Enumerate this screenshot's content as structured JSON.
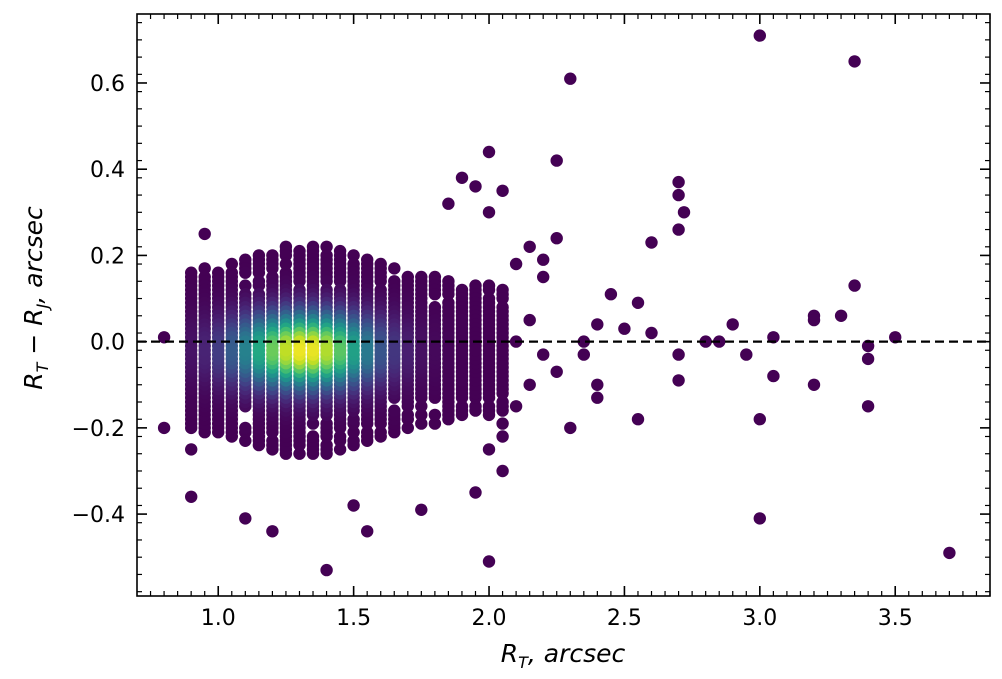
{
  "chart_data": {
    "type": "scatter",
    "xlabel": "R_T, arcsec",
    "ylabel": "R_T − R_J, arcsec",
    "xlim": [
      0.7,
      3.85
    ],
    "ylim": [
      -0.59,
      0.76
    ],
    "x_ticks": [
      1.0,
      1.5,
      2.0,
      2.5,
      3.0,
      3.5
    ],
    "x_tick_labels": [
      "1.0",
      "1.5",
      "2.0",
      "2.5",
      "3.0",
      "3.5"
    ],
    "y_ticks": [
      -0.4,
      -0.2,
      0.0,
      0.2,
      0.4,
      0.6
    ],
    "y_tick_labels": [
      "−0.4",
      "−0.2",
      "0.0",
      "0.2",
      "0.4",
      "0.6"
    ],
    "reference_line": {
      "y": 0.0,
      "style": "dashed",
      "color": "#000000"
    },
    "color_map": "viridis (by point density)",
    "grid": false,
    "dense_core": {
      "x_min": 0.9,
      "x_max": 2.05,
      "x_step": 0.05,
      "y_step": 0.01,
      "peak_x": 1.32,
      "peak_y": -0.02
    },
    "outliers": [
      [
        0.8,
        0.01
      ],
      [
        0.8,
        -0.2
      ],
      [
        0.9,
        -0.25
      ],
      [
        0.9,
        -0.36
      ],
      [
        0.95,
        0.25
      ],
      [
        1.1,
        -0.41
      ],
      [
        1.2,
        -0.44
      ],
      [
        1.4,
        -0.53
      ],
      [
        1.55,
        -0.44
      ],
      [
        1.5,
        -0.38
      ],
      [
        1.75,
        -0.39
      ],
      [
        1.85,
        0.32
      ],
      [
        1.9,
        0.38
      ],
      [
        1.95,
        0.36
      ],
      [
        2.0,
        0.44
      ],
      [
        2.0,
        0.3
      ],
      [
        2.05,
        0.35
      ],
      [
        2.0,
        -0.51
      ],
      [
        1.95,
        -0.35
      ],
      [
        2.05,
        -0.3
      ],
      [
        2.1,
        0.18
      ],
      [
        2.15,
        0.22
      ],
      [
        2.2,
        0.19
      ],
      [
        2.25,
        0.42
      ],
      [
        2.25,
        0.24
      ],
      [
        2.2,
        0.15
      ],
      [
        2.3,
        0.61
      ],
      [
        2.3,
        -0.2
      ],
      [
        2.35,
        0.0
      ],
      [
        2.4,
        -0.1
      ],
      [
        2.4,
        0.04
      ],
      [
        2.45,
        0.11
      ],
      [
        2.5,
        0.03
      ],
      [
        2.55,
        0.09
      ],
      [
        2.55,
        -0.18
      ],
      [
        2.6,
        0.23
      ],
      [
        2.6,
        0.02
      ],
      [
        2.7,
        0.37
      ],
      [
        2.7,
        0.34
      ],
      [
        2.72,
        0.3
      ],
      [
        2.7,
        0.26
      ],
      [
        2.7,
        -0.03
      ],
      [
        2.7,
        -0.09
      ],
      [
        2.8,
        0.0
      ],
      [
        2.85,
        0.0
      ],
      [
        2.9,
        0.04
      ],
      [
        2.95,
        -0.03
      ],
      [
        3.0,
        0.71
      ],
      [
        3.0,
        -0.18
      ],
      [
        3.0,
        -0.41
      ],
      [
        3.05,
        0.01
      ],
      [
        3.05,
        -0.08
      ],
      [
        3.2,
        0.06
      ],
      [
        3.2,
        0.05
      ],
      [
        3.2,
        -0.1
      ],
      [
        3.3,
        0.06
      ],
      [
        3.35,
        0.65
      ],
      [
        3.35,
        0.13
      ],
      [
        3.4,
        -0.01
      ],
      [
        3.4,
        -0.04
      ],
      [
        3.4,
        -0.15
      ],
      [
        3.5,
        0.01
      ],
      [
        3.7,
        -0.49
      ],
      [
        2.4,
        -0.13
      ],
      [
        2.35,
        -0.03
      ],
      [
        2.25,
        -0.07
      ],
      [
        2.15,
        0.05
      ],
      [
        2.1,
        0.0
      ],
      [
        2.1,
        -0.15
      ],
      [
        2.05,
        -0.22
      ],
      [
        2.05,
        -0.19
      ],
      [
        2.0,
        -0.25
      ],
      [
        2.15,
        -0.1
      ],
      [
        2.2,
        -0.03
      ]
    ]
  }
}
